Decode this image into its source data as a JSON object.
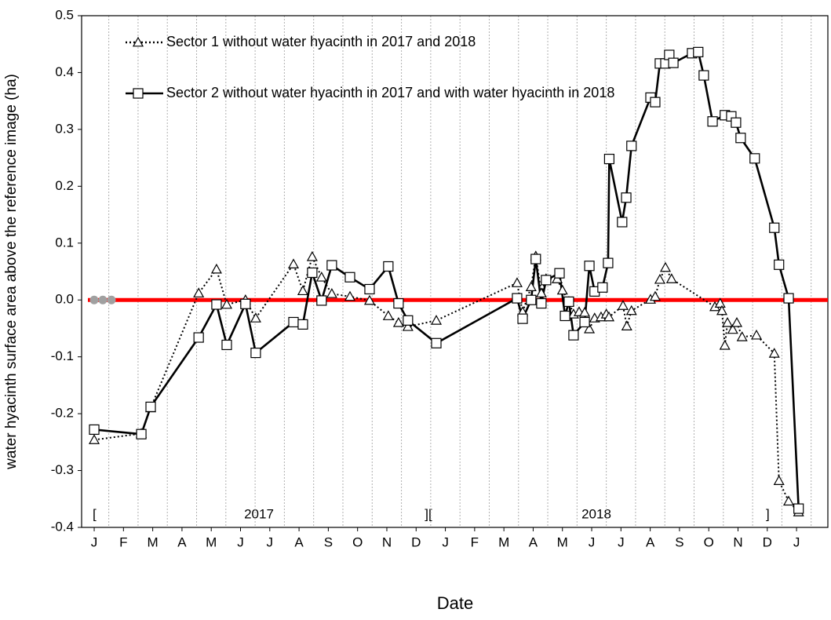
{
  "chart_data": {
    "type": "line",
    "xlabel": "Date",
    "ylabel": "water hyacinth surface area above the reference image (ha)",
    "xlim": [
      -0.43,
      25.07
    ],
    "ylim": [
      -0.4,
      0.5
    ],
    "xticks": [
      {
        "value": 0,
        "label": "J"
      },
      {
        "value": 1,
        "label": "F"
      },
      {
        "value": 2,
        "label": "M"
      },
      {
        "value": 3,
        "label": "A"
      },
      {
        "value": 4,
        "label": "M"
      },
      {
        "value": 5,
        "label": "J"
      },
      {
        "value": 6,
        "label": "J"
      },
      {
        "value": 7,
        "label": "A"
      },
      {
        "value": 8,
        "label": "S"
      },
      {
        "value": 9,
        "label": "O"
      },
      {
        "value": 10,
        "label": "N"
      },
      {
        "value": 11,
        "label": "D"
      },
      {
        "value": 12,
        "label": "J"
      },
      {
        "value": 13,
        "label": "F"
      },
      {
        "value": 14,
        "label": "M"
      },
      {
        "value": 15,
        "label": "A"
      },
      {
        "value": 16,
        "label": "M"
      },
      {
        "value": 17,
        "label": "J"
      },
      {
        "value": 18,
        "label": "J"
      },
      {
        "value": 19,
        "label": "A"
      },
      {
        "value": 20,
        "label": "S"
      },
      {
        "value": 21,
        "label": "O"
      },
      {
        "value": 22,
        "label": "N"
      },
      {
        "value": 23,
        "label": "D"
      },
      {
        "value": 24,
        "label": "J"
      }
    ],
    "yticks": [
      0.5,
      0.4,
      0.3,
      0.2,
      0.1,
      {
        "value": 0,
        "label": "0.0"
      },
      -0.1,
      -0.2,
      -0.3,
      -0.4
    ],
    "grid": true,
    "annotations": [
      "[",
      "2017",
      "][",
      "2018",
      "]"
    ],
    "reference_line": {
      "value": 0,
      "color": "#ff0000"
    },
    "series": [
      {
        "name": "Sector 1 without water hyacinth in 2017 and 2018",
        "color": "#000000",
        "style": "dotted",
        "marker": "triangle",
        "x": [
          0,
          1.61,
          1.93,
          3.57,
          4.18,
          4.53,
          5.17,
          5.52,
          6.81,
          7.13,
          7.45,
          7.77,
          8.12,
          8.74,
          9.41,
          10.05,
          10.4,
          10.72,
          11.69,
          14.45,
          14.64,
          14.93,
          15.09,
          15.28,
          15.44,
          15.82,
          16.0,
          16.22,
          16.38,
          16.57,
          16.76,
          16.92,
          17.1,
          17.32,
          17.5,
          17.59,
          18.07,
          18.2,
          18.36,
          19.01,
          19.17,
          19.33,
          19.52,
          19.73,
          21.21,
          21.39,
          21.45,
          21.55,
          21.64,
          21.82,
          21.96,
          22.14,
          22.63,
          23.24,
          23.4,
          23.73,
          24.07
        ],
        "values": [
          -0.246,
          -0.235,
          -0.19,
          0.012,
          0.054,
          -0.008,
          0.0,
          -0.032,
          0.063,
          0.016,
          0.076,
          0.04,
          0.011,
          0.006,
          -0.001,
          -0.028,
          -0.04,
          -0.047,
          -0.036,
          0.03,
          -0.021,
          0.023,
          0.077,
          0.012,
          0.037,
          0.037,
          0.017,
          -0.003,
          -0.025,
          -0.021,
          -0.022,
          -0.051,
          -0.032,
          -0.03,
          -0.025,
          -0.03,
          -0.01,
          -0.046,
          -0.019,
          0.001,
          0.006,
          0.036,
          0.057,
          0.037,
          -0.012,
          -0.006,
          -0.019,
          -0.08,
          -0.04,
          -0.052,
          -0.04,
          -0.065,
          -0.062,
          -0.094,
          -0.318,
          -0.354,
          -0.373
        ]
      },
      {
        "name": "Sector 2 without water hyacinth in 2017 and with water hyacinth in 2018",
        "color": "#000000",
        "style": "solid",
        "marker": "square",
        "x": [
          0,
          1.61,
          1.93,
          3.57,
          4.18,
          4.53,
          5.17,
          5.52,
          6.81,
          7.13,
          7.45,
          7.77,
          8.12,
          8.74,
          9.41,
          10.05,
          10.4,
          10.72,
          11.69,
          14.45,
          14.64,
          14.93,
          15.09,
          15.28,
          15.44,
          15.9,
          16.09,
          16.22,
          16.38,
          16.76,
          16.92,
          17.1,
          17.37,
          17.56,
          17.6,
          18.04,
          18.18,
          18.36,
          19.01,
          19.17,
          19.33,
          19.52,
          19.65,
          19.79,
          20.43,
          20.64,
          20.83,
          21.13,
          21.55,
          21.77,
          21.93,
          22.09,
          22.57,
          23.24,
          23.4,
          23.73,
          24.07
        ],
        "values": [
          -0.228,
          -0.236,
          -0.188,
          -0.066,
          -0.008,
          -0.079,
          -0.007,
          -0.093,
          -0.039,
          -0.043,
          0.048,
          -0.001,
          0.061,
          0.04,
          0.019,
          0.059,
          -0.006,
          -0.036,
          -0.076,
          0.003,
          -0.033,
          0.0,
          0.072,
          -0.006,
          0.035,
          0.047,
          -0.028,
          -0.003,
          -0.062,
          -0.039,
          0.06,
          0.015,
          0.022,
          0.065,
          0.248,
          0.137,
          0.18,
          0.271,
          0.356,
          0.348,
          0.416,
          0.416,
          0.431,
          0.417,
          0.434,
          0.436,
          0.395,
          0.314,
          0.325,
          0.323,
          0.312,
          0.285,
          0.249,
          0.127,
          0.062,
          0.003,
          -0.367
        ]
      }
    ]
  }
}
